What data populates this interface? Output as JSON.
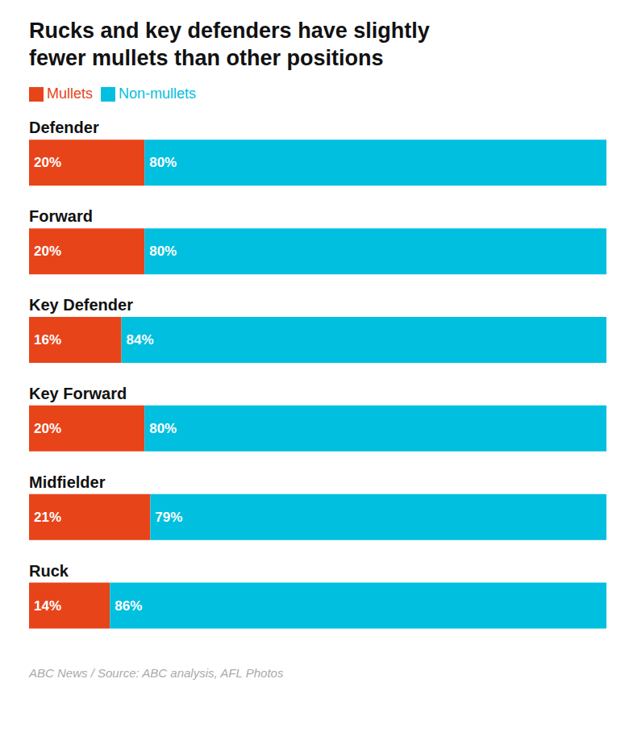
{
  "chart_data": {
    "type": "bar",
    "title": "Rucks and key defenders have slightly\nfewer mullets than other positions",
    "caption": "ABC News / Source: ABC analysis, AFL Photos",
    "orientation": "horizontal",
    "stacked": true,
    "data_labels": true,
    "tick_labels": false,
    "grid": false,
    "legend": "upper left",
    "xlim": [
      0,
      100
    ],
    "categories": [
      "Defender",
      "Forward",
      "Key Defender",
      "Key Forward",
      "Midfielder",
      "Ruck"
    ],
    "series": [
      {
        "name": "Mullets",
        "color": "#E8441A",
        "values": [
          20,
          20,
          16,
          20,
          21,
          14
        ],
        "value_labels": [
          "20%",
          "20%",
          "16%",
          "20%",
          "21%",
          "14%"
        ]
      },
      {
        "name": "Non-mullets",
        "color": "#00BFDF",
        "values": [
          80,
          80,
          84,
          80,
          79,
          86
        ],
        "value_labels": [
          "80%",
          "80%",
          "84%",
          "80%",
          "79%",
          "86%"
        ]
      }
    ]
  }
}
